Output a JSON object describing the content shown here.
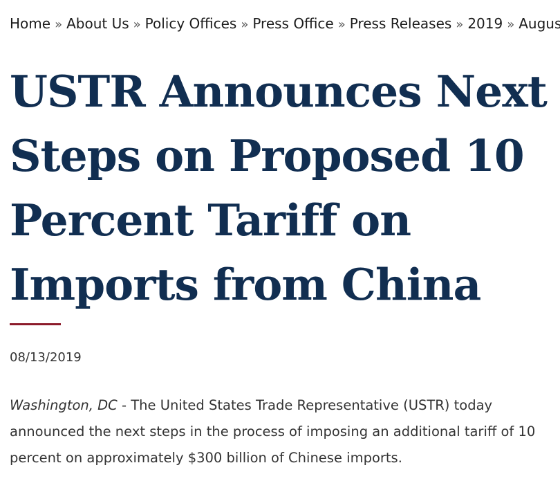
{
  "breadcrumb": {
    "items": [
      {
        "label": "Home"
      },
      {
        "label": "About Us"
      },
      {
        "label": "Policy Offices"
      },
      {
        "label": "Press Office"
      },
      {
        "label": "Press Releases"
      },
      {
        "label": "2019"
      },
      {
        "label": "August"
      }
    ],
    "separator": "»"
  },
  "article": {
    "title": "USTR Announces Next Steps on Proposed 10 Percent Tariff on Imports from China",
    "date": "08/13/2019",
    "dateline": "Washington, DC",
    "dateline_dash": " - ",
    "lead": "The United States Trade Representative (USTR) today announced the next steps in the process of imposing an additional tariff of 10 percent on approximately $300 billion of Chinese imports."
  },
  "colors": {
    "title": "#112e51",
    "rule": "#8c1b2b"
  }
}
